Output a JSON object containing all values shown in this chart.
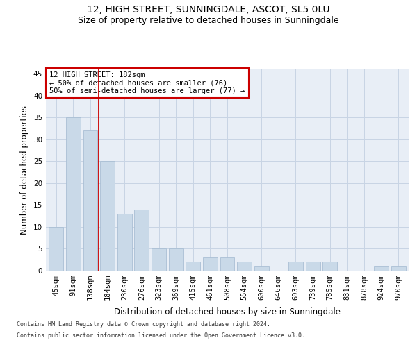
{
  "title1": "12, HIGH STREET, SUNNINGDALE, ASCOT, SL5 0LU",
  "title2": "Size of property relative to detached houses in Sunningdale",
  "xlabel": "Distribution of detached houses by size in Sunningdale",
  "ylabel": "Number of detached properties",
  "categories": [
    "45sqm",
    "91sqm",
    "138sqm",
    "184sqm",
    "230sqm",
    "276sqm",
    "323sqm",
    "369sqm",
    "415sqm",
    "461sqm",
    "508sqm",
    "554sqm",
    "600sqm",
    "646sqm",
    "693sqm",
    "739sqm",
    "785sqm",
    "831sqm",
    "878sqm",
    "924sqm",
    "970sqm"
  ],
  "values": [
    10,
    35,
    32,
    25,
    13,
    14,
    5,
    5,
    2,
    3,
    3,
    2,
    1,
    0,
    2,
    2,
    2,
    0,
    0,
    1,
    1
  ],
  "bar_color": "#c9d9e8",
  "bar_edge_color": "#aabfd4",
  "vline_x": 2.5,
  "vline_color": "#cc0000",
  "annotation_text": "12 HIGH STREET: 182sqm\n← 50% of detached houses are smaller (76)\n50% of semi-detached houses are larger (77) →",
  "annotation_box_color": "#ffffff",
  "annotation_box_edge": "#cc0000",
  "ylim": [
    0,
    46
  ],
  "yticks": [
    0,
    5,
    10,
    15,
    20,
    25,
    30,
    35,
    40,
    45
  ],
  "axes_bg_color": "#e8eef6",
  "bg_color": "#ffffff",
  "grid_color": "#c8d4e4",
  "footer1": "Contains HM Land Registry data © Crown copyright and database right 2024.",
  "footer2": "Contains public sector information licensed under the Open Government Licence v3.0.",
  "title_fontsize": 10,
  "subtitle_fontsize": 9,
  "tick_fontsize": 7.5,
  "label_fontsize": 8.5,
  "annotation_fontsize": 7.5,
  "footer_fontsize": 6
}
